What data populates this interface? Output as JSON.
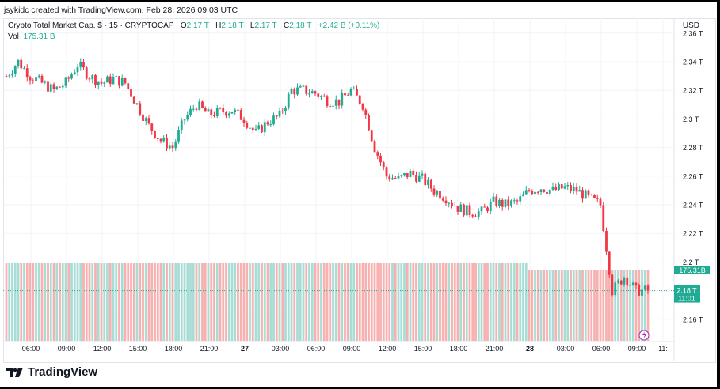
{
  "header": {
    "credit": "jsykidc created with TradingView.com, Feb 28, 2026 09:03 UTC"
  },
  "legend": {
    "symbol": "Crypto Total Market Cap, $ · 15 · CRYPTOCAP",
    "o_label": "O",
    "o": "2.17 T",
    "h_label": "H",
    "h": "2.18 T",
    "l_label": "L",
    "l": "2.17 T",
    "c_label": "C",
    "c": "2.18 T",
    "change": "+2.42 B (+0.11%)",
    "vol_label": "Vol",
    "vol": "175.31 B"
  },
  "axis": {
    "currency": "USD",
    "price_ticks": [
      {
        "v": 2.36,
        "label": "2.36 T"
      },
      {
        "v": 2.34,
        "label": "2.34 T"
      },
      {
        "v": 2.32,
        "label": "2.32 T"
      },
      {
        "v": 2.3,
        "label": "2.3 T"
      },
      {
        "v": 2.28,
        "label": "2.28 T"
      },
      {
        "v": 2.26,
        "label": "2.26 T"
      },
      {
        "v": 2.24,
        "label": "2.24 T"
      },
      {
        "v": 2.22,
        "label": "2.22 T"
      },
      {
        "v": 2.2,
        "label": "2.2 T"
      },
      {
        "v": 2.18,
        "label": "2.18 T"
      },
      {
        "v": 2.16,
        "label": "2.16 T"
      }
    ],
    "time_ticks": [
      {
        "h": 2,
        "label": "06:00"
      },
      {
        "h": 5,
        "label": "09:00"
      },
      {
        "h": 8,
        "label": "12:00"
      },
      {
        "h": 11,
        "label": "15:00"
      },
      {
        "h": 14,
        "label": "18:00"
      },
      {
        "h": 17,
        "label": "21:00"
      },
      {
        "h": 20,
        "label": "27"
      },
      {
        "h": 23,
        "label": "03:00"
      },
      {
        "h": 26,
        "label": "06:00"
      },
      {
        "h": 29,
        "label": "09:00"
      },
      {
        "h": 32,
        "label": "12:00"
      },
      {
        "h": 35,
        "label": "15:00"
      },
      {
        "h": 38,
        "label": "18:00"
      },
      {
        "h": 41,
        "label": "21:00"
      },
      {
        "h": 44,
        "label": "28"
      },
      {
        "h": 47,
        "label": "03:00"
      },
      {
        "h": 50,
        "label": "06:00"
      },
      {
        "h": 53,
        "label": "09:00"
      },
      {
        "h": 55.2,
        "label": "11:"
      }
    ]
  },
  "badges": {
    "volume": "175.31B",
    "price": "2.18 T",
    "countdown": "11:01"
  },
  "brand": {
    "name": "TradingView"
  },
  "colors": {
    "up": "#22ab94",
    "down": "#f23645",
    "vol_up": "#a8ddd5",
    "vol_down": "#f7b1b0"
  },
  "chart_data": {
    "type": "candlestick",
    "title": "Crypto Total Market Cap, $ · 15 · CRYPTOCAP",
    "interval": "15m",
    "ylabel": "USD (trillions)",
    "ylim": [
      2.14,
      2.36
    ],
    "start": "Feb 26 04:00",
    "current_price": 2.18,
    "hourly_close": [
      2.33,
      2.34,
      2.33,
      2.325,
      2.32,
      2.325,
      2.338,
      2.33,
      2.325,
      2.328,
      2.325,
      2.31,
      2.295,
      2.285,
      2.28,
      2.3,
      2.31,
      2.303,
      2.305,
      2.306,
      2.3,
      2.29,
      2.298,
      2.302,
      2.32,
      2.32,
      2.318,
      2.313,
      2.312,
      2.32,
      2.31,
      2.28,
      2.26,
      2.258,
      2.262,
      2.258,
      2.25,
      2.245,
      2.238,
      2.235,
      2.235,
      2.242,
      2.24,
      2.242,
      2.25,
      2.252,
      2.25,
      2.252,
      2.25,
      2.245,
      2.24,
      2.18,
      2.19,
      2.18,
      2.18
    ]
  }
}
